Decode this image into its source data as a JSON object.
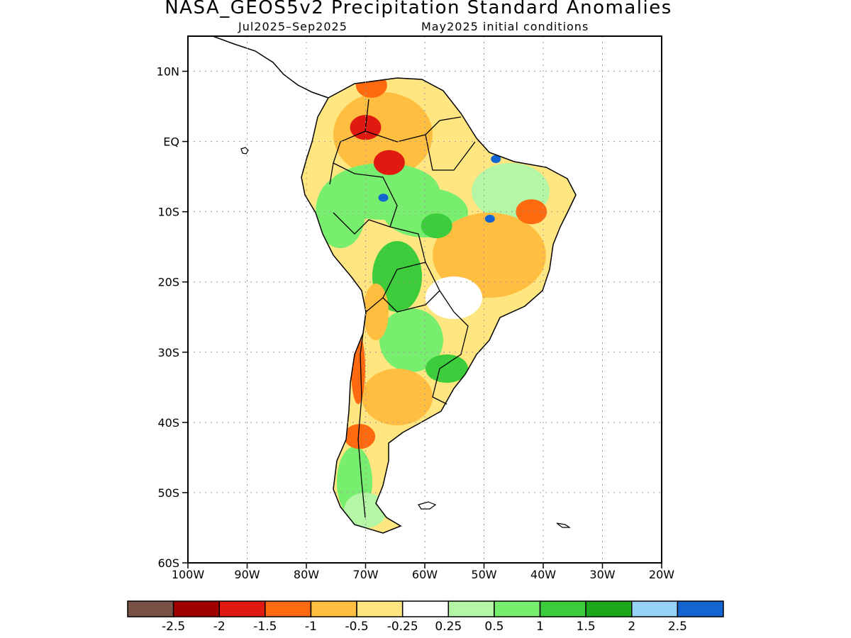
{
  "title": "NASA_GEOS5v2 Precipitation Standard Anomalies",
  "subtitle_period": "Jul2025–Sep2025",
  "subtitle_init": "May2025 initial conditions",
  "map": {
    "lon_range": [
      -100,
      -20
    ],
    "lat_range": [
      -60,
      15
    ],
    "lat_ticks": [
      {
        "value": 10,
        "label": "10N"
      },
      {
        "value": 0,
        "label": "EQ"
      },
      {
        "value": -10,
        "label": "10S"
      },
      {
        "value": -20,
        "label": "20S"
      },
      {
        "value": -30,
        "label": "30S"
      },
      {
        "value": -40,
        "label": "40S"
      },
      {
        "value": -50,
        "label": "50S"
      },
      {
        "value": -60,
        "label": "60S"
      }
    ],
    "lon_ticks": [
      {
        "value": -100,
        "label": "100W"
      },
      {
        "value": -90,
        "label": "90W"
      },
      {
        "value": -80,
        "label": "80W"
      },
      {
        "value": -70,
        "label": "70W"
      },
      {
        "value": -60,
        "label": "60W"
      },
      {
        "value": -50,
        "label": "50W"
      },
      {
        "value": -40,
        "label": "40W"
      },
      {
        "value": -30,
        "label": "30W"
      },
      {
        "value": -20,
        "label": "20W"
      }
    ],
    "grid": "dotted"
  },
  "colorbar": {
    "colors": [
      "#7a5145",
      "#a00000",
      "#e01a10",
      "#ff6a10",
      "#ffbe40",
      "#ffe680",
      "#ffffff",
      "#b4f5a6",
      "#78ee6e",
      "#3ccc3c",
      "#1ca81c",
      "#96d2fa",
      "#1464d2"
    ],
    "labels": [
      "-2.5",
      "-2",
      "-1.5",
      "-1",
      "-0.5",
      "-0.25",
      "0.25",
      "0.5",
      "1",
      "1.5",
      "2",
      "2.5"
    ]
  },
  "anomaly_areas": [
    {
      "category": "-1",
      "lon": -69,
      "lat": 8,
      "color": "#ff6a10"
    },
    {
      "category": "-1.5",
      "lon": -70,
      "lat": 2,
      "color": "#e01a10"
    },
    {
      "category": "-1.5",
      "lon": -66,
      "lat": -3,
      "color": "#e01a10"
    },
    {
      "category": "-1",
      "lon": -42,
      "lat": -10,
      "color": "#ff6a10"
    },
    {
      "category": "-0.5",
      "lon": -50,
      "lat": -15,
      "color": "#ffbe40"
    },
    {
      "category": "-1",
      "lon": -71,
      "lat": -42,
      "color": "#ff6a10"
    },
    {
      "category": "0.5",
      "lon": -70,
      "lat": -8,
      "color": "#78ee6e"
    },
    {
      "category": "1",
      "lon": -58,
      "lat": -12,
      "color": "#3ccc3c"
    },
    {
      "category": "0.5",
      "lon": -60,
      "lat": -28,
      "color": "#78ee6e"
    },
    {
      "category": "2.5",
      "lon": -67,
      "lat": -8,
      "color": "#1464d2"
    },
    {
      "category": "2.5",
      "lon": -48,
      "lat": -2.5,
      "color": "#1464d2"
    },
    {
      "category": "2.5",
      "lon": -49,
      "lat": -11,
      "color": "#1464d2"
    }
  ]
}
